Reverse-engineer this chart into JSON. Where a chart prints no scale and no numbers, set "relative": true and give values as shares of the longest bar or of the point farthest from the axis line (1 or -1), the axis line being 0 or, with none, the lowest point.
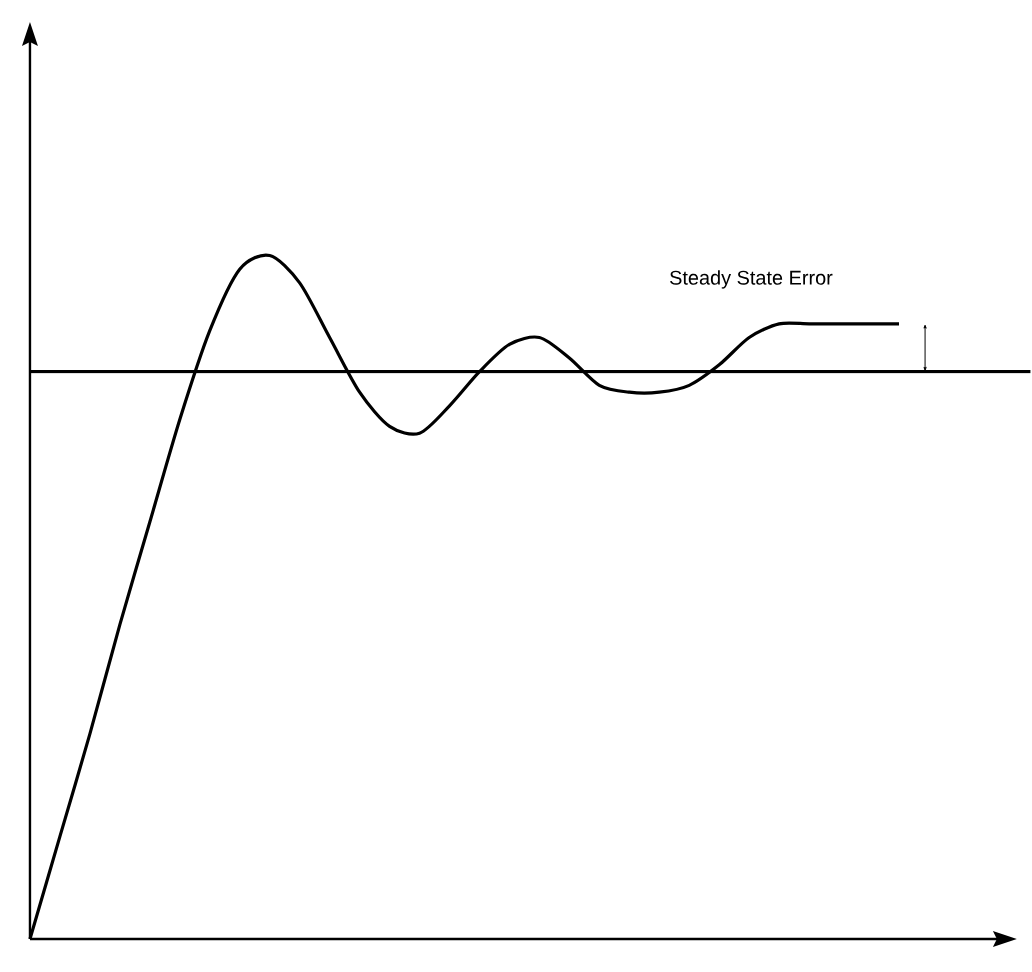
{
  "chart_data": {
    "type": "line",
    "relative": true,
    "categories": [
      null,
      null,
      null,
      null,
      null,
      null,
      null,
      null,
      null,
      null,
      null,
      null,
      null,
      null,
      null,
      null,
      null,
      null,
      null,
      null,
      null,
      null,
      null,
      null,
      null,
      null,
      null,
      null,
      null,
      null
    ],
    "series": [
      {
        "color": "#000000",
        "values": [
          0,
          0.15,
          0.3,
          0.46,
          0.61,
          0.76,
          0.89,
          0.98,
          1,
          0.96,
          0.88,
          0.8,
          0.75,
          0.74,
          0.78,
          0.83,
          0.87,
          0.88,
          0.85,
          0.81,
          0.8,
          0.8,
          0.81,
          0.84,
          0.88,
          0.9,
          0.9,
          0.9,
          0.9,
          0.9
        ]
      }
    ],
    "ref_lines": [
      {
        "axis": "y",
        "value": 0.83,
        "color": "#000000"
      }
    ],
    "annotations": [
      "Steady State Error"
    ],
    "marker": "none",
    "line_style": "solid"
  }
}
